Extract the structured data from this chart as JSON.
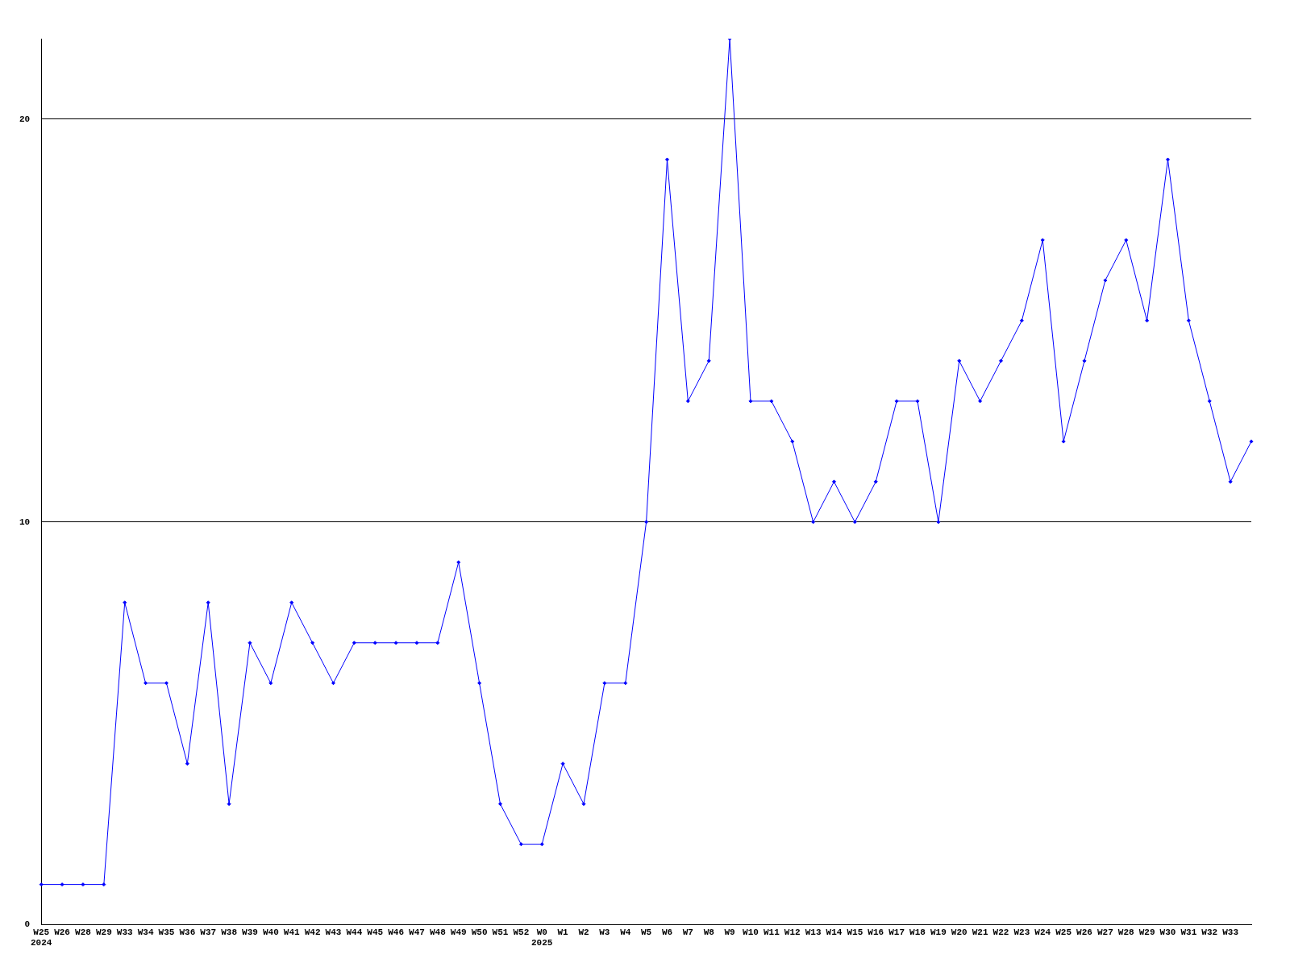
{
  "chart_data": {
    "type": "line",
    "categories": [
      "W25\n2024",
      "W26",
      "W28",
      "W29",
      "W33",
      "W34",
      "W35",
      "W36",
      "W37",
      "W38",
      "W39",
      "W40",
      "W41",
      "W42",
      "W43",
      "W44",
      "W45",
      "W46",
      "W47",
      "W48",
      "W49",
      "W50",
      "W51",
      "W52",
      "W0\n2025",
      "W1",
      "W2",
      "W3",
      "W4",
      "W5",
      "W6",
      "W7",
      "W8",
      "W9",
      "W10",
      "W11",
      "W12",
      "W13",
      "W14",
      "W15",
      "W16",
      "W17",
      "W18",
      "W19",
      "W20",
      "W21",
      "W22",
      "W23",
      "W24",
      "W25",
      "W26",
      "W27",
      "W28",
      "W29",
      "W30",
      "W31",
      "W32",
      "W33",
      null
    ],
    "series": [
      {
        "color": "#0000ff",
        "values": [
          1,
          1,
          1,
          1,
          8,
          6,
          6,
          4,
          8,
          3,
          7,
          6,
          8,
          7,
          6,
          7,
          7,
          7,
          7,
          7,
          9,
          6,
          3,
          2,
          2,
          4,
          3,
          6,
          6,
          10,
          19,
          13,
          14,
          22,
          13,
          13,
          12,
          10,
          11,
          10,
          11,
          13,
          13,
          10,
          14,
          13,
          14,
          15,
          17,
          12,
          14,
          16,
          17,
          15,
          19,
          15,
          13,
          11,
          12
        ]
      }
    ],
    "ylim": [
      0,
      22
    ],
    "yticks": [
      0,
      10,
      20
    ],
    "grid": "y",
    "marker": "diamond",
    "line_style": "solid",
    "legend": false
  }
}
